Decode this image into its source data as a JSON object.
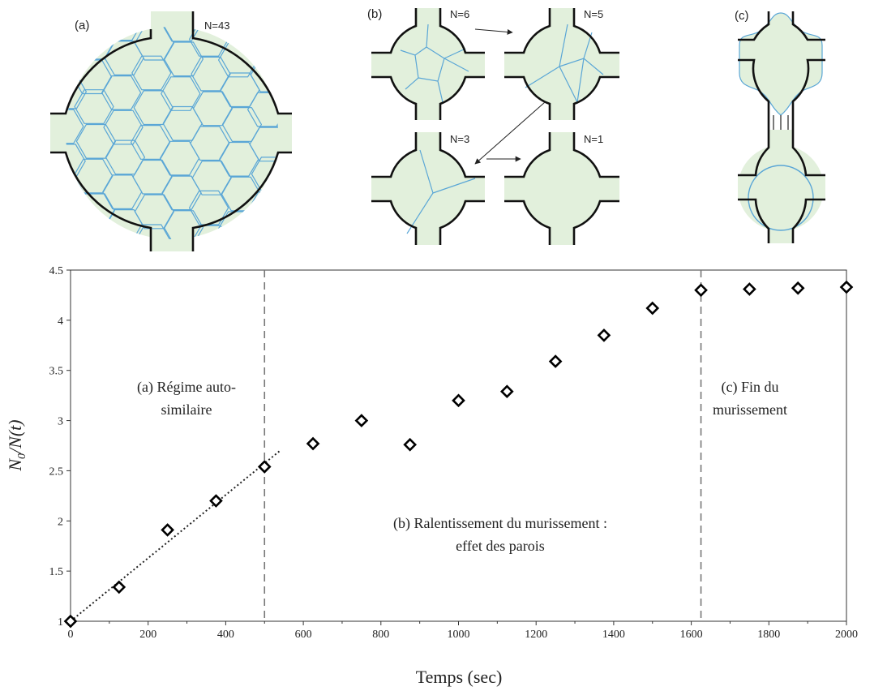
{
  "panels": {
    "a": {
      "label": "(a)",
      "count": "N=43"
    },
    "b": {
      "label": "(b)",
      "counts": [
        "N=6",
        "N=5",
        "N=3",
        "N=1"
      ]
    },
    "c": {
      "label": "(c)"
    }
  },
  "chart_data": {
    "type": "scatter",
    "xlabel": "Temps (sec)",
    "ylabel": "N0/N(t)",
    "xlim": [
      0,
      2000
    ],
    "ylim": [
      1,
      4.5
    ],
    "xticks": [
      0,
      200,
      400,
      600,
      800,
      1000,
      1200,
      1400,
      1600,
      1800,
      2000
    ],
    "yticks": [
      "1",
      "1.5",
      "2",
      "2.5",
      "3",
      "3.5",
      "4",
      "4.5"
    ],
    "marker": "diamond-open",
    "points": [
      {
        "x": 0,
        "y": 1.0
      },
      {
        "x": 125,
        "y": 1.34
      },
      {
        "x": 250,
        "y": 1.91
      },
      {
        "x": 375,
        "y": 2.2
      },
      {
        "x": 500,
        "y": 2.54
      },
      {
        "x": 625,
        "y": 2.77
      },
      {
        "x": 750,
        "y": 3.0
      },
      {
        "x": 875,
        "y": 2.76
      },
      {
        "x": 1000,
        "y": 3.2
      },
      {
        "x": 1125,
        "y": 3.29
      },
      {
        "x": 1250,
        "y": 3.59
      },
      {
        "x": 1375,
        "y": 3.85
      },
      {
        "x": 1500,
        "y": 4.12
      },
      {
        "x": 1625,
        "y": 4.3
      },
      {
        "x": 1750,
        "y": 4.31
      },
      {
        "x": 1875,
        "y": 4.32
      },
      {
        "x": 2000,
        "y": 4.33
      }
    ],
    "trendline": {
      "x": [
        0,
        540
      ],
      "y": [
        1.0,
        2.7
      ],
      "style": "dotted"
    },
    "vlines": [
      500,
      1625
    ],
    "annotations": {
      "a": [
        "(a) Régime auto-",
        "similaire"
      ],
      "b": [
        "(b) Ralentissement  du murissement :",
        "effet des parois"
      ],
      "c": [
        "(c) Fin du",
        "murissement"
      ]
    },
    "grid": false
  }
}
